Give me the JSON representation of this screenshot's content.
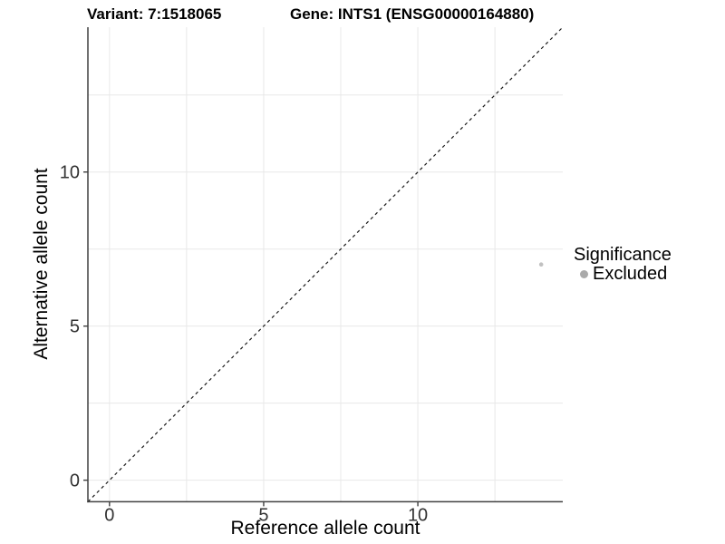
{
  "header": {
    "variant_title": "Variant: 7:1518065",
    "gene_title": "Gene: INTS1 (ENSG00000164880)"
  },
  "chart_data": {
    "type": "scatter",
    "title": "Variant: 7:1518065    Gene: INTS1 (ENSG00000164880)",
    "xlabel": "Reference allele count",
    "ylabel": "Alternative allele count",
    "xlim": [
      0,
      14
    ],
    "ylim": [
      0,
      14
    ],
    "expansion": 0.05,
    "x_ticks": [
      0,
      5,
      10
    ],
    "y_ticks": [
      0,
      5,
      10
    ],
    "grid_interval": 2.5,
    "grid_on": true,
    "points": [
      {
        "x": 14,
        "y": 7,
        "significance": "Excluded"
      }
    ],
    "point_radius": 2.3,
    "identity_line": {
      "slope": 1,
      "intercept": 0,
      "style": "dashed",
      "color": "#1a1a1a"
    },
    "legend": {
      "position": "right",
      "title": "Significance",
      "items": [
        {
          "label": "Excluded",
          "color": "#aaaaaa"
        }
      ]
    },
    "colors": {
      "grid": "#e8e8e8",
      "axis": "#404040",
      "tick_label": "#333333",
      "point": "#c1c1c1",
      "legend_point": "#aaaaaa",
      "background": "#ffffff"
    }
  }
}
